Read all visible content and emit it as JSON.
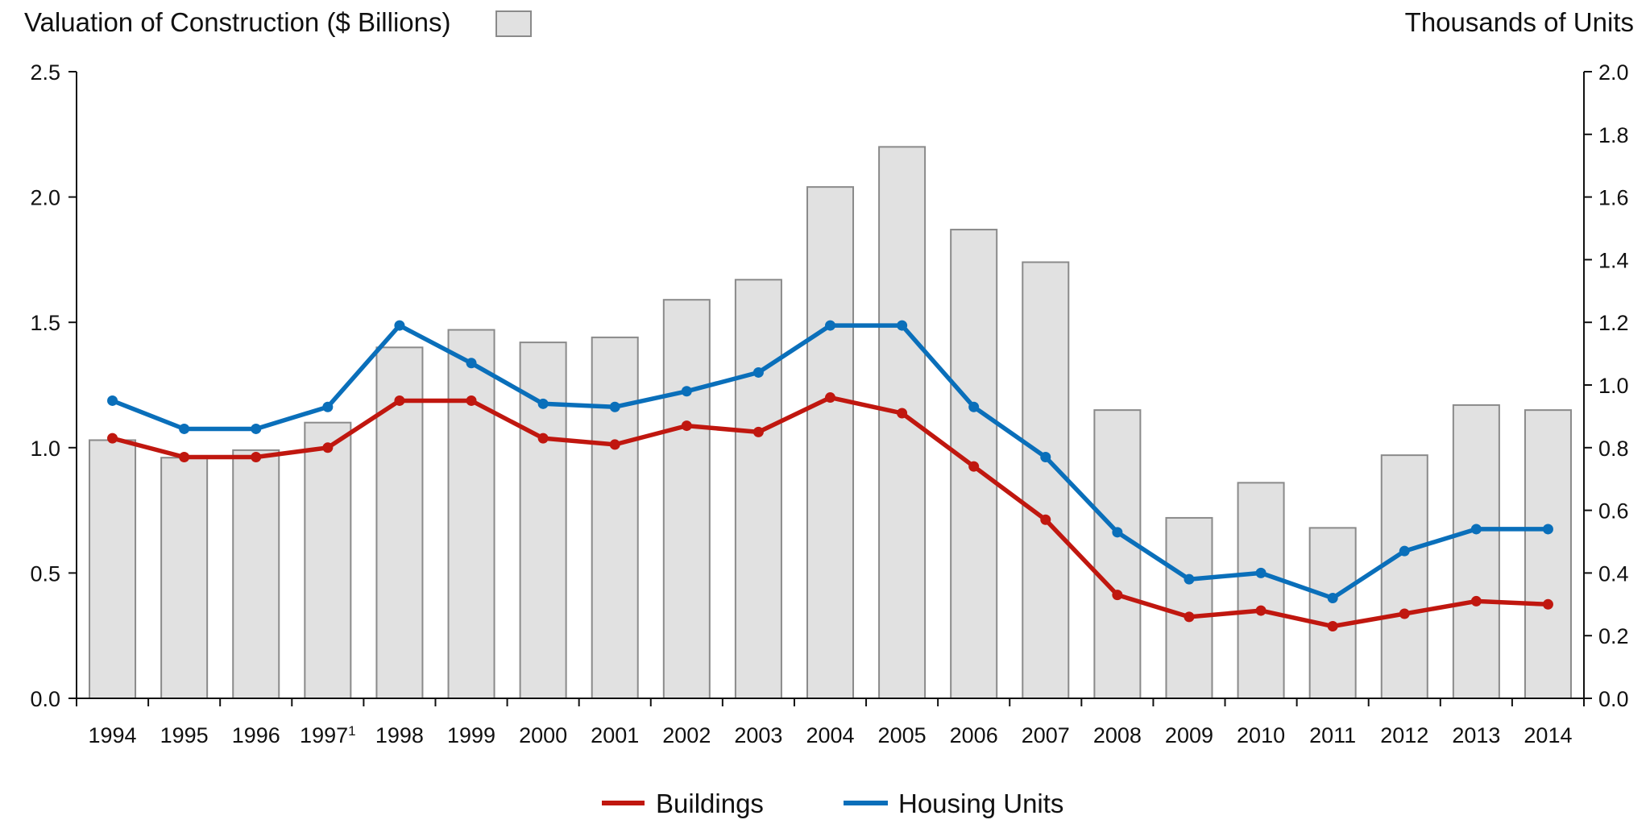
{
  "chart_data": {
    "type": "bar+line",
    "title_left": "Valuation of Construction ($ Billions)",
    "title_right": "Thousands of  Units",
    "categories": [
      "1994",
      "1995",
      "1996",
      "1997",
      "1998",
      "1999",
      "2000",
      "2001",
      "2002",
      "2003",
      "2004",
      "2005",
      "2006",
      "2007",
      "2008",
      "2009",
      "2010",
      "2011",
      "2012",
      "2013",
      "2014"
    ],
    "category_footnotes": {
      "1997": "1"
    },
    "left_axis": {
      "label": "Valuation of Construction ($ Billions)",
      "range": [
        0,
        2.5
      ],
      "ticks": [
        "0.0",
        "0.5",
        "1.0",
        "1.5",
        "2.0",
        "2.5"
      ]
    },
    "right_axis": {
      "label": "Thousands of  Units",
      "range": [
        0,
        2.0
      ],
      "ticks": [
        "0.0",
        "0.2",
        "0.4",
        "0.6",
        "0.8",
        "1.0",
        "1.2",
        "1.4",
        "1.6",
        "1.8",
        "2.0"
      ]
    },
    "grid": false,
    "bars": {
      "name": "Valuation of Construction ($ Billions)",
      "axis": "left",
      "color": "#E1E1E1",
      "stroke": "#8A8A8A",
      "values": [
        1.03,
        0.96,
        0.99,
        1.1,
        1.4,
        1.47,
        1.42,
        1.44,
        1.59,
        1.67,
        2.04,
        2.2,
        1.87,
        1.74,
        1.15,
        0.72,
        0.86,
        0.68,
        0.97,
        1.17,
        1.15
      ]
    },
    "series": [
      {
        "name": "Buildings",
        "axis": "right",
        "color": "#C0170F",
        "values": [
          0.83,
          0.77,
          0.77,
          0.8,
          0.95,
          0.95,
          0.83,
          0.81,
          0.87,
          0.85,
          0.96,
          0.91,
          0.74,
          0.57,
          0.33,
          0.26,
          0.28,
          0.23,
          0.27,
          0.31,
          0.3
        ]
      },
      {
        "name": "Housing Units",
        "axis": "right",
        "color": "#0A6FBA",
        "values": [
          0.95,
          0.86,
          0.86,
          0.93,
          1.19,
          1.07,
          0.94,
          0.93,
          0.98,
          1.04,
          1.19,
          1.19,
          0.93,
          0.77,
          0.53,
          0.38,
          0.4,
          0.32,
          0.47,
          0.54,
          0.54
        ]
      }
    ],
    "legend": {
      "placement": "bottom-center",
      "entries": [
        "Buildings",
        "Housing Units"
      ]
    },
    "bar_legend_placement": "top-left, after left title"
  }
}
